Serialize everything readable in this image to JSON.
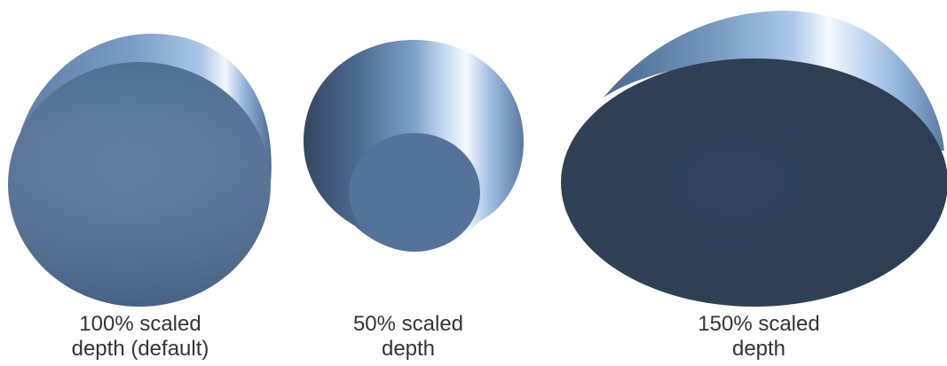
{
  "shapes": [
    {
      "id": "shape-100",
      "scaled_depth_percent": 100,
      "caption_line1": "100% scaled",
      "caption_line2": "depth (default)"
    },
    {
      "id": "shape-50",
      "scaled_depth_percent": 50,
      "caption_line1": "50% scaled",
      "caption_line2": "depth"
    },
    {
      "id": "shape-150",
      "scaled_depth_percent": 150,
      "caption_line1": "150% scaled",
      "caption_line2": "depth"
    }
  ],
  "colors": {
    "front_face_light": "#56739a",
    "front_face_dark": "#2f4157",
    "body_highlight": "#eaf3fc",
    "body_mid": "#7fa0c8",
    "body_shadow": "#34465e",
    "caption_text": "#333333"
  }
}
